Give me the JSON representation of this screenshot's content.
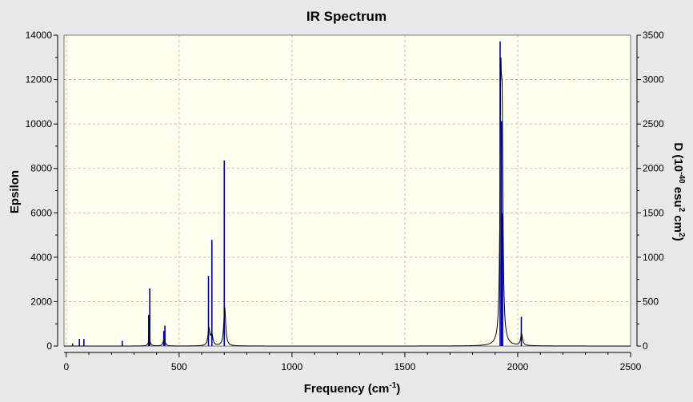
{
  "chart_data": {
    "type": "line",
    "title": "IR Spectrum",
    "xlabel": {
      "main": "Frequency (cm",
      "sup": "-1",
      "tail": ")"
    },
    "ylabel_left": "Epsilon",
    "ylabel_right": {
      "p1": "D (10",
      "sup1": "-40",
      "p2": " esu",
      "sup2": "2",
      "p3": " cm",
      "sup3": "2",
      "p4": ")"
    },
    "xlim": [
      -10,
      2500
    ],
    "ylim_left": [
      0,
      14000
    ],
    "ylim_right": [
      0,
      3500
    ],
    "x_ticks": [
      0,
      500,
      1000,
      1500,
      2000,
      2500
    ],
    "y_left_ticks": [
      0,
      2000,
      4000,
      6000,
      8000,
      10000,
      12000,
      14000
    ],
    "y_right_ticks": [
      0,
      500,
      1000,
      1500,
      2000,
      2500,
      3000,
      3500
    ],
    "grid": true,
    "plot_background": "#ffffef",
    "window_background": "#e8e8e8",
    "stick_color": "#0000aa",
    "curve_color": "#000000",
    "stick_series": {
      "name": "D",
      "units": "10^-40 esu^2 cm^2",
      "x": [
        28,
        58,
        78,
        248,
        365,
        370,
        432,
        437,
        630,
        645,
        700,
        1922,
        1928,
        1933,
        2016
      ],
      "values": [
        30,
        80,
        80,
        60,
        350,
        650,
        170,
        230,
        790,
        1195,
        2090,
        3430,
        2530,
        1490,
        330
      ]
    },
    "curve_series": {
      "name": "Epsilon",
      "peaks": [
        {
          "x": 368,
          "height": 300,
          "width": 5
        },
        {
          "x": 434,
          "height": 330,
          "width": 5
        },
        {
          "x": 632,
          "height": 780,
          "width": 5
        },
        {
          "x": 645,
          "height": 500,
          "width": 5
        },
        {
          "x": 702,
          "height": 1750,
          "width": 5
        },
        {
          "x": 1925,
          "height": 10100,
          "width": 4
        },
        {
          "x": 1931,
          "height": 8800,
          "width": 4
        },
        {
          "x": 2017,
          "height": 520,
          "width": 5
        }
      ]
    }
  }
}
